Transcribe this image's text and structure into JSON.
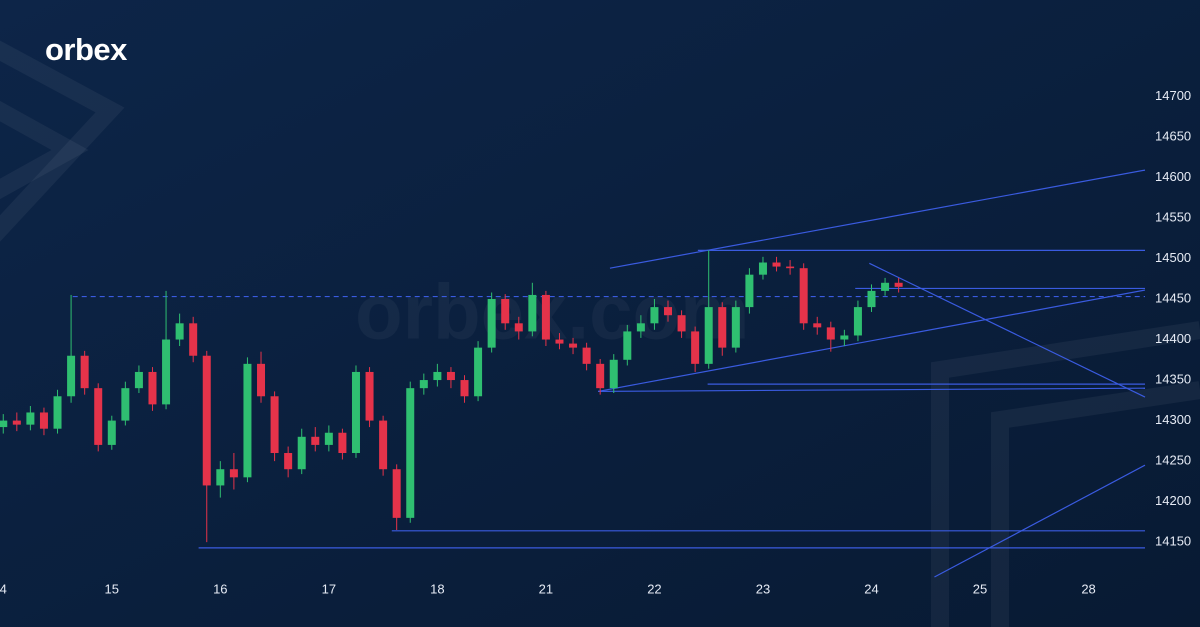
{
  "brand": "orbex",
  "watermark": "orbex.com",
  "chart_data": {
    "type": "candlestick",
    "x": [
      0,
      0.125,
      0.25,
      0.375,
      0.5,
      0.625,
      0.75,
      0.875,
      1,
      1.125,
      1.25,
      1.375,
      1.5,
      1.625,
      1.75,
      1.875,
      2,
      2.125,
      2.25,
      2.375,
      2.5,
      2.625,
      2.75,
      2.875,
      3,
      3.125,
      3.25,
      3.375,
      3.5,
      3.625,
      3.75,
      3.875,
      4,
      4.125,
      4.25,
      4.375,
      4.5,
      4.625,
      4.75,
      4.875,
      5,
      5.125,
      5.25,
      5.375,
      5.5,
      5.625,
      5.75,
      5.875,
      6,
      6.125,
      6.25,
      6.375,
      6.5,
      6.625,
      6.75,
      6.875,
      7,
      7.125,
      7.25,
      7.375,
      7.5,
      7.625,
      7.75,
      7.875,
      8,
      8.125,
      8.25
    ],
    "open": [
      14292,
      14300,
      14295,
      14310,
      14290,
      14330,
      14380,
      14340,
      14270,
      14300,
      14340,
      14360,
      14320,
      14400,
      14420,
      14380,
      14220,
      14240,
      14230,
      14370,
      14330,
      14260,
      14240,
      14280,
      14270,
      14285,
      14260,
      14360,
      14300,
      14240,
      14180,
      14340,
      14350,
      14360,
      14350,
      14330,
      14390,
      14450,
      14420,
      14410,
      14455,
      14400,
      14395,
      14390,
      14370,
      14340,
      14375,
      14410,
      14420,
      14440,
      14430,
      14410,
      14370,
      14440,
      14390,
      14440,
      14480,
      14495,
      14490,
      14488,
      14420,
      14415,
      14400,
      14405,
      14440,
      14460,
      14470
    ],
    "high": [
      14308,
      14310,
      14318,
      14316,
      14338,
      14455,
      14386,
      14346,
      14306,
      14348,
      14368,
      14366,
      14460,
      14432,
      14428,
      14386,
      14250,
      14260,
      14378,
      14385,
      14336,
      14268,
      14290,
      14292,
      14294,
      14290,
      14368,
      14366,
      14306,
      14246,
      14348,
      14358,
      14370,
      14366,
      14356,
      14398,
      14458,
      14456,
      14428,
      14470,
      14460,
      14408,
      14402,
      14396,
      14376,
      14382,
      14418,
      14430,
      14450,
      14448,
      14436,
      14416,
      14510,
      14446,
      14448,
      14488,
      14502,
      14502,
      14498,
      14494,
      14428,
      14422,
      14412,
      14448,
      14468,
      14476,
      14476
    ],
    "low": [
      14284,
      14287,
      14288,
      14282,
      14284,
      14322,
      14332,
      14262,
      14264,
      14294,
      14334,
      14312,
      14314,
      14392,
      14372,
      14150,
      14205,
      14215,
      14224,
      14322,
      14250,
      14230,
      14234,
      14262,
      14262,
      14252,
      14254,
      14292,
      14232,
      14165,
      14174,
      14332,
      14342,
      14340,
      14322,
      14324,
      14384,
      14412,
      14400,
      14404,
      14392,
      14388,
      14382,
      14362,
      14332,
      14334,
      14368,
      14402,
      14412,
      14422,
      14402,
      14360,
      14364,
      14380,
      14384,
      14432,
      14474,
      14484,
      14480,
      14412,
      14406,
      14385,
      14392,
      14398,
      14434,
      14454,
      14458
    ],
    "close": [
      14300,
      14295,
      14310,
      14290,
      14330,
      14380,
      14340,
      14270,
      14300,
      14340,
      14360,
      14320,
      14400,
      14420,
      14380,
      14220,
      14240,
      14230,
      14370,
      14330,
      14260,
      14240,
      14280,
      14270,
      14285,
      14260,
      14360,
      14300,
      14240,
      14180,
      14340,
      14350,
      14360,
      14350,
      14330,
      14390,
      14450,
      14420,
      14410,
      14455,
      14400,
      14395,
      14390,
      14370,
      14340,
      14375,
      14410,
      14420,
      14440,
      14430,
      14410,
      14370,
      14440,
      14390,
      14440,
      14480,
      14495,
      14490,
      14488,
      14420,
      14415,
      14400,
      14405,
      14440,
      14460,
      14470,
      14465
    ],
    "up_color": "#2fbf71",
    "down_color": "#e5334a",
    "line_color": "#3a5be0",
    "xlim": [
      -0.03,
      10.52
    ],
    "ylim": [
      14091,
      14714
    ],
    "xticks": [
      {
        "value": 0,
        "label": "4"
      },
      {
        "value": 1,
        "label": "15"
      },
      {
        "value": 2,
        "label": "16"
      },
      {
        "value": 3,
        "label": "17"
      },
      {
        "value": 4,
        "label": "18"
      },
      {
        "value": 5,
        "label": "21"
      },
      {
        "value": 6,
        "label": "22"
      },
      {
        "value": 7,
        "label": "23"
      },
      {
        "value": 8,
        "label": "24"
      },
      {
        "value": 9,
        "label": "25"
      },
      {
        "value": 10,
        "label": "28"
      }
    ],
    "yticks": [
      14150,
      14200,
      14250,
      14300,
      14350,
      14400,
      14450,
      14500,
      14550,
      14600,
      14650,
      14700
    ],
    "trend_lines": [
      {
        "x": [
          1.8,
          10.52
        ],
        "y": [
          14143,
          14143
        ]
      },
      {
        "x": [
          3.58,
          10.52
        ],
        "y": [
          14164,
          14164
        ]
      },
      {
        "x": [
          5.48,
          10.52
        ],
        "y": [
          14336,
          14340
        ]
      },
      {
        "x": [
          6.49,
          10.52
        ],
        "y": [
          14345,
          14345
        ]
      },
      {
        "x": [
          7.85,
          10.52
        ],
        "y": [
          14463,
          14463
        ]
      },
      {
        "x": [
          6.4,
          10.52
        ],
        "y": [
          14510,
          14510
        ]
      },
      {
        "x": [
          0.64,
          10.52
        ],
        "y": [
          14453,
          14453
        ],
        "dashed": true
      },
      {
        "x": [
          5.59,
          10.52
        ],
        "y": [
          14488,
          14609
        ]
      },
      {
        "x": [
          5.48,
          10.52
        ],
        "y": [
          14336,
          14461
        ]
      },
      {
        "x": [
          7.98,
          10.52
        ],
        "y": [
          14494,
          14329
        ]
      },
      {
        "x": [
          8.58,
          10.52
        ],
        "y": [
          14107,
          14245
        ]
      }
    ]
  }
}
